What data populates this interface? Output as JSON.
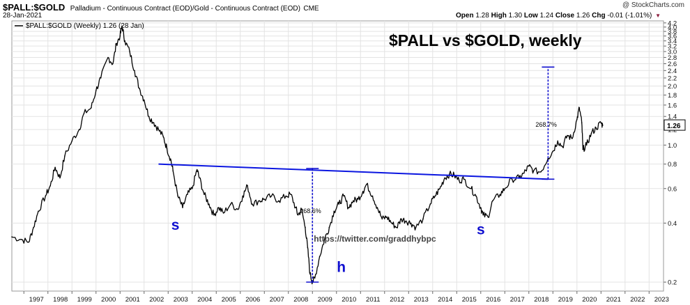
{
  "header": {
    "symbol": "$PALL:$GOLD",
    "description": "Palladium - Continuous Contract (EOD)/Gold - Continuous Contract (EOD)",
    "exchange": "CME",
    "date": "28-Jan-2021",
    "open_label": "Open",
    "open": "1.28",
    "high_label": "High",
    "high": "1.30",
    "low_label": "Low",
    "low": "1.24",
    "close_label": "Close",
    "close": "1.26",
    "chg_label": "Chg",
    "chg": "-0.01 (-1.01%)",
    "brand": "@ StockCharts.com"
  },
  "colors": {
    "price": "#000000",
    "trendline": "#0b16e0",
    "annotation": "#1010d0",
    "grid": "#e3e3e3"
  },
  "chart_data": {
    "type": "line",
    "title": "$PALL vs $GOLD, weekly",
    "legend": "$PALL:$GOLD (Weekly) 1.26 (28 Jan)",
    "legend_position": "top-left",
    "y_scale": "log",
    "ylim": [
      0.18,
      4.3
    ],
    "xlim": [
      1996.5,
      2023.6
    ],
    "grid": true,
    "y_ticks": [
      "4.2",
      "4.0",
      "3.8",
      "3.6",
      "3.4",
      "3.2",
      "3.0",
      "2.8",
      "2.6",
      "2.4",
      "2.2",
      "2.0",
      "1.8",
      "1.6",
      "1.4",
      "1.2",
      "1.0",
      "0.8",
      "0.6",
      "0.4",
      "0.2"
    ],
    "x_ticks": [
      "1997",
      "1998",
      "1999",
      "2000",
      "2001",
      "2002",
      "2003",
      "2004",
      "2005",
      "2006",
      "2007",
      "2008",
      "2009",
      "2010",
      "2011",
      "2012",
      "2013",
      "2014",
      "2015",
      "2016",
      "2017",
      "2018",
      "2019",
      "2020",
      "2021",
      "2022",
      "2023"
    ],
    "last_value_label": "1.26",
    "series": [
      {
        "name": "$PALL:$GOLD",
        "x": [
          1996.5,
          1996.9,
          1997.2,
          1997.4,
          1997.6,
          1997.9,
          1998.1,
          1998.3,
          1998.5,
          1998.7,
          1999.0,
          1999.3,
          1999.5,
          1999.8,
          2000.0,
          2000.2,
          2000.5,
          2000.7,
          2000.85,
          2001.0,
          2001.08,
          2001.2,
          2001.4,
          2001.6,
          2001.8,
          2002.0,
          2002.2,
          2002.4,
          2002.6,
          2002.8,
          2002.95,
          2003.1,
          2003.2,
          2003.4,
          2003.6,
          2003.8,
          2004.0,
          2004.2,
          2004.3,
          2004.5,
          2004.7,
          2004.9,
          2005.1,
          2005.3,
          2005.6,
          2005.9,
          2006.1,
          2006.3,
          2006.5,
          2006.8,
          2007.0,
          2007.3,
          2007.6,
          2007.9,
          2008.1,
          2008.3,
          2008.4,
          2008.55,
          2008.7,
          2008.8,
          2008.9,
          2009.0,
          2009.1,
          2009.3,
          2009.5,
          2009.7,
          2009.9,
          2010.1,
          2010.3,
          2010.5,
          2010.7,
          2010.9,
          2011.1,
          2011.25,
          2011.5,
          2011.7,
          2011.9,
          2012.1,
          2012.3,
          2012.5,
          2012.7,
          2012.9,
          2013.1,
          2013.3,
          2013.6,
          2013.9,
          2014.1,
          2014.3,
          2014.5,
          2014.7,
          2014.9,
          2015.1,
          2015.3,
          2015.6,
          2015.8,
          2016.0,
          2016.1,
          2016.3,
          2016.5,
          2016.8,
          2017.0,
          2017.3,
          2017.6,
          2017.8,
          2018.0,
          2018.2,
          2018.5,
          2018.8,
          2019.0,
          2019.2,
          2019.4,
          2019.6,
          2019.8,
          2020.0,
          2020.1,
          2020.2,
          2020.25,
          2020.4,
          2020.6,
          2020.8,
          2021.0,
          2021.07
        ],
        "values": [
          0.34,
          0.33,
          0.32,
          0.38,
          0.46,
          0.55,
          0.62,
          0.77,
          0.68,
          0.88,
          1.05,
          1.2,
          1.45,
          1.55,
          1.9,
          2.2,
          2.8,
          2.6,
          3.3,
          3.6,
          4.05,
          3.4,
          3.0,
          2.4,
          1.95,
          1.7,
          1.4,
          1.3,
          1.2,
          1.1,
          0.96,
          0.85,
          0.74,
          0.55,
          0.48,
          0.56,
          0.6,
          0.75,
          0.68,
          0.56,
          0.5,
          0.44,
          0.48,
          0.45,
          0.5,
          0.47,
          0.55,
          0.62,
          0.5,
          0.52,
          0.53,
          0.55,
          0.52,
          0.55,
          0.56,
          0.48,
          0.44,
          0.47,
          0.38,
          0.3,
          0.22,
          0.2,
          0.21,
          0.27,
          0.33,
          0.38,
          0.46,
          0.5,
          0.55,
          0.48,
          0.52,
          0.53,
          0.58,
          0.63,
          0.55,
          0.48,
          0.42,
          0.43,
          0.4,
          0.38,
          0.42,
          0.41,
          0.4,
          0.38,
          0.42,
          0.5,
          0.55,
          0.6,
          0.68,
          0.71,
          0.7,
          0.66,
          0.67,
          0.6,
          0.55,
          0.48,
          0.44,
          0.43,
          0.52,
          0.56,
          0.6,
          0.67,
          0.68,
          0.72,
          0.78,
          0.74,
          0.73,
          0.86,
          0.93,
          1.05,
          0.98,
          1.12,
          1.08,
          1.35,
          1.55,
          1.3,
          0.95,
          1.0,
          1.15,
          1.22,
          1.3,
          1.26
        ]
      }
    ],
    "annotations": {
      "trendline": {
        "x": [
          2002.6,
          2018.8
        ],
        "y": [
          0.8,
          0.67
        ]
      },
      "measure_left": {
        "x": 2009.0,
        "y_from": 0.2,
        "y_to": 0.76,
        "label": "268.6%"
      },
      "measure_right": {
        "x": 2018.8,
        "y_from": 0.67,
        "y_to": 2.5,
        "label": "268.7%"
      },
      "pattern_labels": [
        {
          "text": "s",
          "x": 2003.3,
          "y": 0.37
        },
        {
          "text": "h",
          "x": 2010.2,
          "y": 0.225
        },
        {
          "text": "s",
          "x": 2016.0,
          "y": 0.35
        }
      ],
      "watermark": {
        "text": "https://twitter.com/graddhybpc",
        "x": 2011.6,
        "y": 0.322
      }
    }
  }
}
